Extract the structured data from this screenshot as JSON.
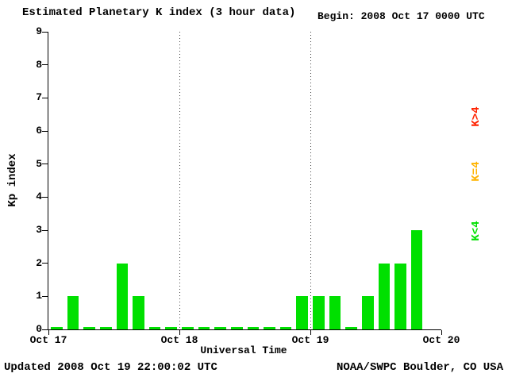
{
  "header": {
    "begin_label": "Begin:  2008 Oct 17 0000 UTC"
  },
  "footer": {
    "updated": "Updated 2008 Oct 19 22:00:02 UTC",
    "credit": "NOAA/SWPC Boulder, CO USA"
  },
  "legend": {
    "gt4": {
      "label": "K>4",
      "color": "#ff2200"
    },
    "eq4": {
      "label": "K=4",
      "color": "#ffb400"
    },
    "lt4": {
      "label": "K<4",
      "color": "#00e000"
    }
  },
  "chart_data": {
    "type": "bar",
    "title": "Estimated Planetary K index (3 hour data)",
    "xlabel": "Universal Time",
    "ylabel": "Kp index",
    "ylim": [
      0,
      9
    ],
    "y_ticks": [
      0,
      1,
      2,
      3,
      4,
      5,
      6,
      7,
      8,
      9
    ],
    "x_ticks": [
      "Oct 17",
      "Oct 18",
      "Oct 19",
      "Oct 20"
    ],
    "days": 3,
    "bars_per_day": 8,
    "hours_per_bar": 3,
    "values": [
      0,
      1,
      0,
      0,
      2,
      1,
      0,
      0,
      0,
      0,
      0,
      0,
      0,
      0,
      0,
      1,
      1,
      1,
      0,
      1,
      2,
      2,
      3
    ],
    "bar_colors": {
      "below4": "#00e000",
      "equal4": "#ffb400",
      "above4": "#ff2200"
    },
    "grid": "dotted vertical day separators",
    "legend_position": "right"
  }
}
